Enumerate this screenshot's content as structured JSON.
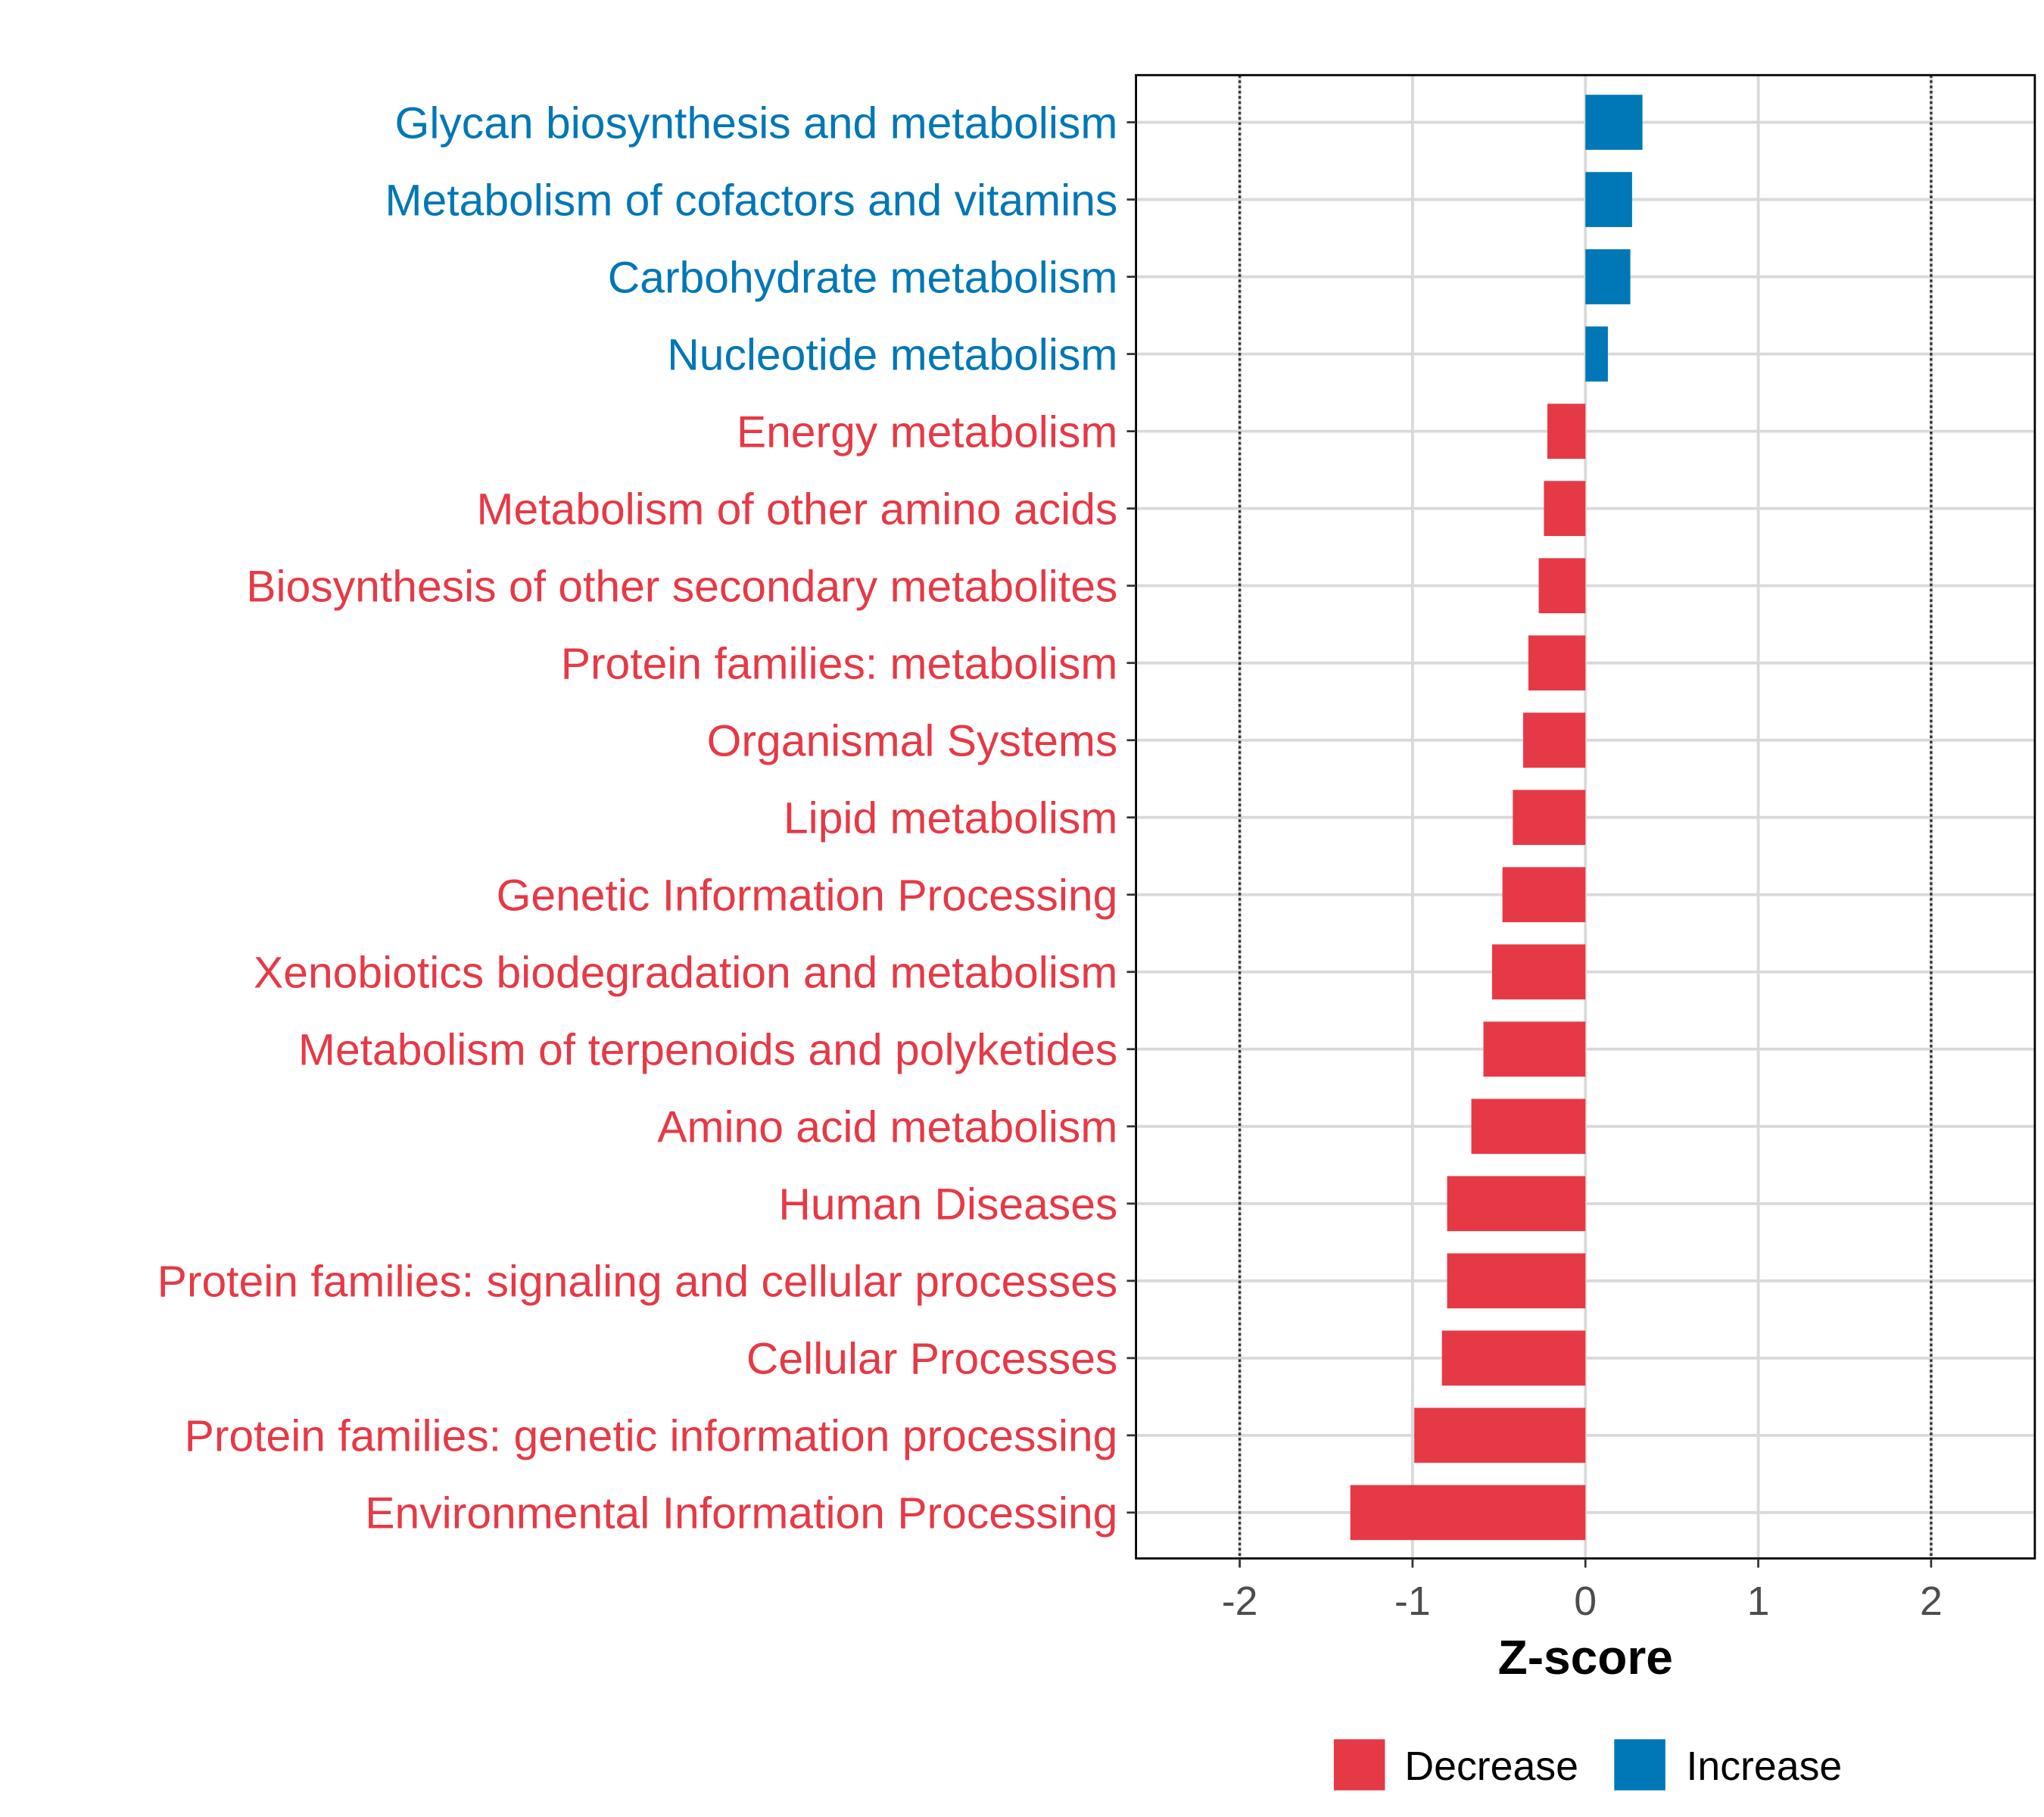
{
  "colors": {
    "decrease": "#E63946",
    "increase": "#0077B6",
    "grid": "#D9D9D9",
    "axis_text": "#4D4D4D"
  },
  "chart_data": {
    "type": "bar",
    "orientation": "horizontal",
    "title": "",
    "xlabel": "Z-score",
    "ylabel": "",
    "xlim": [
      -2.6,
      2.6
    ],
    "xticks": [
      -2,
      -1,
      0,
      1,
      2
    ],
    "xtick_labels": [
      "-2",
      "-1",
      "0",
      "1",
      "2"
    ],
    "reference_lines": [
      -2,
      2
    ],
    "grid": true,
    "legend": {
      "placement": "bottom",
      "entries": [
        {
          "label": "Decrease",
          "key": "decrease"
        },
        {
          "label": "Increase",
          "key": "increase"
        }
      ]
    },
    "categories": [
      "Glycan biosynthesis and metabolism",
      "Metabolism of cofactors and vitamins",
      "Carbohydrate metabolism",
      "Nucleotide metabolism",
      "Energy metabolism",
      "Metabolism of other amino acids",
      "Biosynthesis of other secondary metabolites",
      "Protein families: metabolism",
      "Organismal Systems",
      "Lipid metabolism",
      "Genetic Information Processing",
      "Xenobiotics biodegradation and metabolism",
      "Metabolism of terpenoids and polyketides",
      "Amino acid metabolism",
      "Human Diseases",
      "Protein families: signaling and cellular processes",
      "Cellular Processes",
      "Protein families: genetic information processing",
      "Environmental Information Processing"
    ],
    "values": [
      0.33,
      0.27,
      0.26,
      0.13,
      -0.22,
      -0.24,
      -0.27,
      -0.33,
      -0.36,
      -0.42,
      -0.48,
      -0.54,
      -0.59,
      -0.66,
      -0.8,
      -0.8,
      -0.83,
      -0.99,
      -1.36
    ]
  }
}
